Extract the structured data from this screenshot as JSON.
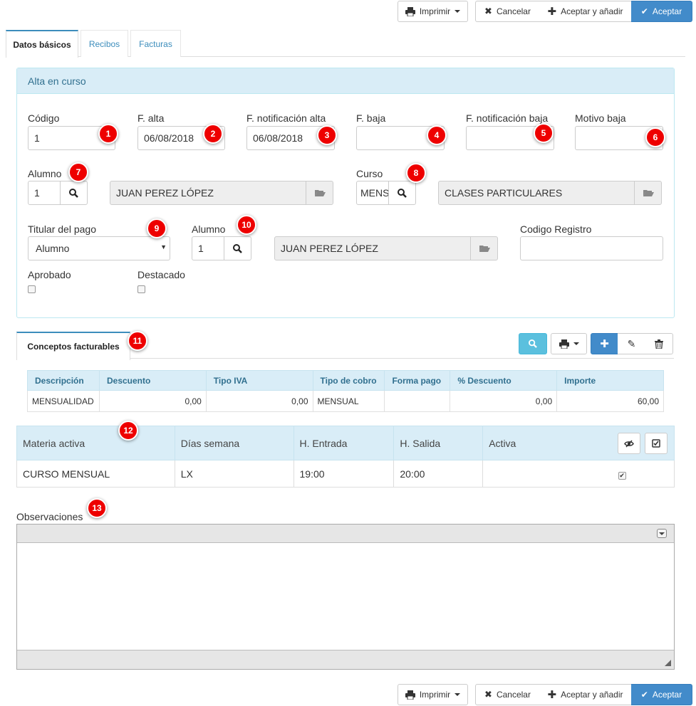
{
  "toolbar": {
    "print_label": "Imprimir",
    "cancel_label": "Cancelar",
    "accept_add_label": "Aceptar y añadir",
    "accept_label": "Aceptar"
  },
  "tabs": [
    {
      "label": "Datos básicos",
      "active": true
    },
    {
      "label": "Recibos",
      "active": false
    },
    {
      "label": "Facturas",
      "active": false
    }
  ],
  "panel": {
    "title": "Alta en curso",
    "fields": {
      "codigo": {
        "label": "Código",
        "value": "1"
      },
      "f_alta": {
        "label": "F. alta",
        "value": "06/08/2018"
      },
      "f_notificacion_alta": {
        "label": "F. notificación alta",
        "value": "06/08/2018"
      },
      "f_baja": {
        "label": "F. baja",
        "value": ""
      },
      "f_notificacion_baja": {
        "label": "F. notificación baja",
        "value": ""
      },
      "motivo_baja": {
        "label": "Motivo baja",
        "value": ""
      },
      "alumno": {
        "label": "Alumno",
        "code": "1",
        "name": "JUAN PEREZ LÓPEZ"
      },
      "curso": {
        "label": "Curso",
        "code": "MENSUAL",
        "name": "CLASES PARTICULARES"
      },
      "titular_pago": {
        "label": "Titular del pago",
        "value": "Alumno"
      },
      "alumno_pago": {
        "label": "Alumno",
        "code": "1",
        "name": "JUAN PEREZ LÓPEZ"
      },
      "codigo_registro": {
        "label": "Codigo Registro",
        "value": ""
      },
      "aprobado": {
        "label": "Aprobado",
        "checked": false
      },
      "destacado": {
        "label": "Destacado",
        "checked": false
      }
    }
  },
  "conceptos": {
    "tab_label": "Conceptos facturables",
    "columns": [
      "Descripción",
      "Descuento",
      "Tipo IVA",
      "Tipo de cobro",
      "Forma pago",
      "% Descuento",
      "Importe"
    ],
    "rows": [
      [
        "MENSUALIDAD",
        "0,00",
        "0,00",
        "MENSUAL",
        "",
        "0,00",
        "60,00"
      ]
    ]
  },
  "materias": {
    "columns": [
      "Materia activa",
      "Días semana",
      "H. Entrada",
      "H. Salida",
      "Activa"
    ],
    "rows": [
      {
        "materia": "CURSO MENSUAL",
        "dias": "LX",
        "entrada": "19:00",
        "salida": "20:00",
        "activa": true
      }
    ]
  },
  "observaciones": {
    "label": "Observaciones",
    "value": ""
  },
  "badges": [
    "1",
    "2",
    "3",
    "4",
    "5",
    "6",
    "7",
    "8",
    "9",
    "10",
    "11",
    "12",
    "13"
  ],
  "colors": {
    "primary": "#428bca",
    "panel_head": "#d9edf7",
    "badge": "#ee0000"
  }
}
